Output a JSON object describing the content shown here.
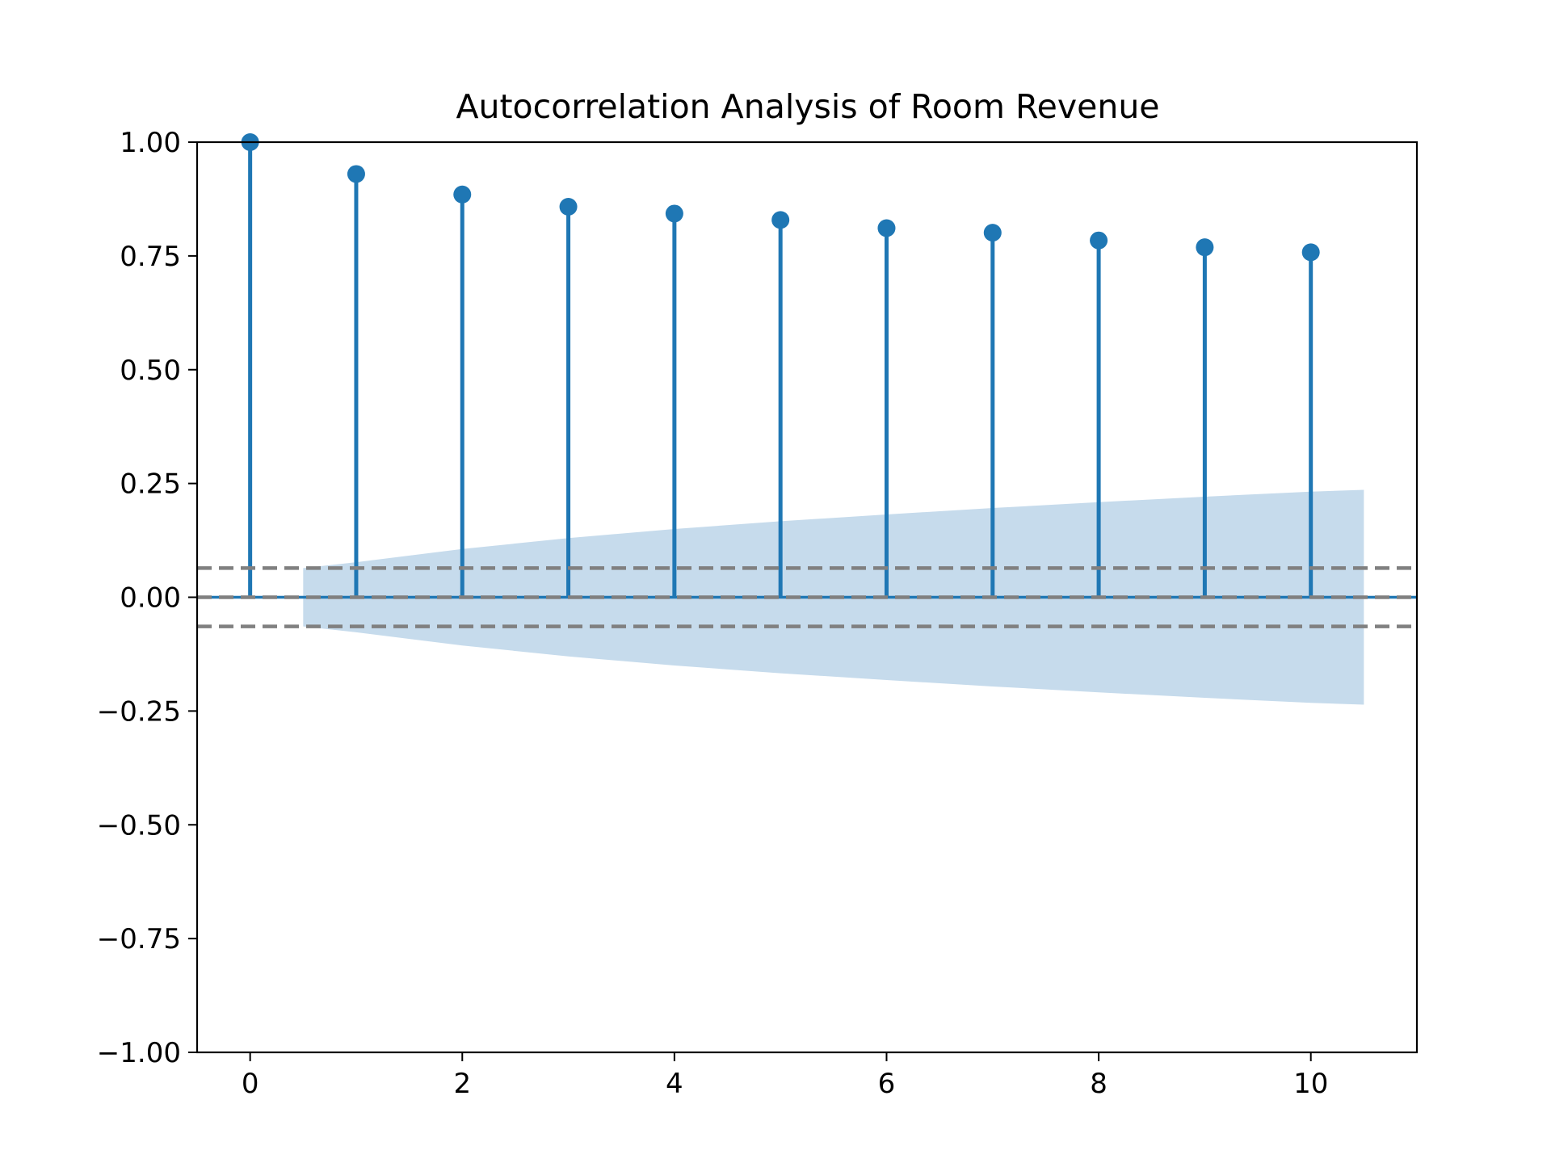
{
  "chart_data": {
    "type": "bar",
    "title": "Autocorrelation Analysis of Room Revenue",
    "xlabel": "",
    "ylabel": "",
    "xlim": [
      -0.5,
      11
    ],
    "ylim": [
      -1.0,
      1.0
    ],
    "x_ticks": [
      0,
      2,
      4,
      6,
      8,
      10
    ],
    "x_tick_labels": [
      "0",
      "2",
      "4",
      "6",
      "8",
      "10"
    ],
    "y_ticks": [
      1.0,
      0.75,
      0.5,
      0.25,
      0.0,
      -0.25,
      -0.5,
      -0.75,
      -1.0
    ],
    "y_tick_labels": [
      "1.00",
      "0.75",
      "0.50",
      "0.25",
      "0.00",
      "−0.25",
      "−0.50",
      "−0.75",
      "−1.00"
    ],
    "grid": false,
    "series": [
      {
        "kind": "stem",
        "x": [
          0,
          1,
          2,
          3,
          4,
          5,
          6,
          7,
          8,
          9,
          10
        ],
        "values": [
          1.0,
          0.93,
          0.885,
          0.858,
          0.843,
          0.829,
          0.811,
          0.801,
          0.784,
          0.769,
          0.758
        ],
        "color": "#1f77b4"
      }
    ],
    "confidence_band": {
      "x": [
        0.5,
        1,
        2,
        3,
        4,
        5,
        6,
        7,
        8,
        9,
        10,
        10.5
      ],
      "upper": [
        0.064,
        0.077,
        0.106,
        0.13,
        0.15,
        0.167,
        0.182,
        0.196,
        0.209,
        0.221,
        0.232,
        0.236
      ],
      "color": "#c6dbec"
    },
    "reference_lines": [
      {
        "y": 0.064,
        "style": "dashed",
        "color": "#808080"
      },
      {
        "y": -0.064,
        "style": "dashed",
        "color": "#808080"
      },
      {
        "y": 0.0,
        "style": "dashed",
        "color": "#808080"
      }
    ],
    "zero_line": {
      "y": 0.0,
      "color": "#1f77b4"
    }
  }
}
